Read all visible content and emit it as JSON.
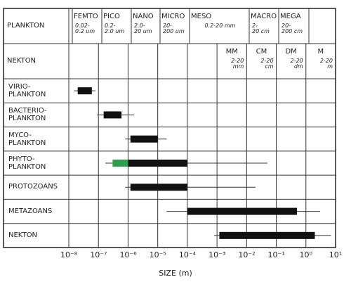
{
  "chart_data": {
    "type": "range",
    "row_headers": [
      "PLANKTON",
      "NEKTON"
    ],
    "size_classes": [
      {
        "name": "FEMTO",
        "range": "0.02-\n0.2 um"
      },
      {
        "name": "PICO",
        "range": "0.2-\n2.0 um"
      },
      {
        "name": "NANO",
        "range": "2.0-\n20 um"
      },
      {
        "name": "MICRO",
        "range": "20-\n200 um"
      },
      {
        "name": "MESO",
        "range": "0.2-20 mm"
      },
      {
        "name": "MACRO",
        "range": "2-\n20 cm"
      },
      {
        "name": "MEGA",
        "range": "20-\n200 cm"
      }
    ],
    "nekton_classes": [
      {
        "name": "MM",
        "range": "2-20\nmm"
      },
      {
        "name": "CM",
        "range": "2-20\ncm"
      },
      {
        "name": "DM",
        "range": "2-20\ndm"
      },
      {
        "name": "M",
        "range": "2-20\nm"
      }
    ],
    "categories": [
      "VIRIO-\nPLANKTON",
      "BACTERIO-\nPLANKTON",
      "MYCO-\nPLANKTON",
      "PHYTO-\nPLANKTON",
      "PROTOZOANS",
      "METAZOANS",
      "NEKTON"
    ],
    "ranges": [
      {
        "thin": [
          1.5e-08,
          8e-08
        ],
        "thick": [
          2e-08,
          6e-08
        ]
      },
      {
        "thin": [
          9e-08,
          1.6e-06
        ],
        "thick": [
          1.5e-07,
          6e-07
        ]
      },
      {
        "thin": [
          8e-07,
          2e-05
        ],
        "thick": [
          1.2e-06,
          1e-05
        ]
      },
      {
        "thin": [
          1.7e-07,
          0.05
        ],
        "thick": [
          1e-06,
          0.0001
        ],
        "highlight": [
          3e-07,
          1e-06
        ]
      },
      {
        "thin": [
          8e-07,
          0.02
        ],
        "thick": [
          1.2e-06,
          0.0001
        ]
      },
      {
        "thin": [
          2e-05,
          3
        ],
        "thick": [
          0.0001,
          0.5
        ]
      },
      {
        "thin": [
          0.0008,
          7
        ],
        "thick": [
          0.0012,
          2
        ]
      }
    ],
    "color": "#111111",
    "highlight_color": "#2e9e4f",
    "xlabel": "SIZE (m)",
    "xscale": "log",
    "xlim": [
      1e-08,
      10
    ],
    "xticks": [
      {
        "value": 1e-08,
        "label": "10⁻⁸"
      },
      {
        "value": 1e-07,
        "label": "10⁻⁷"
      },
      {
        "value": 1e-06,
        "label": "10⁻⁶"
      },
      {
        "value": 1e-05,
        "label": "10⁻⁵"
      },
      {
        "value": 0.0001,
        "label": "10⁻⁴"
      },
      {
        "value": 0.001,
        "label": "10⁻³"
      },
      {
        "value": 0.01,
        "label": "10⁻²"
      },
      {
        "value": 0.1,
        "label": "10⁻¹"
      },
      {
        "value": 1,
        "label": "10⁰"
      },
      {
        "value": 10,
        "label": "10¹"
      }
    ]
  }
}
